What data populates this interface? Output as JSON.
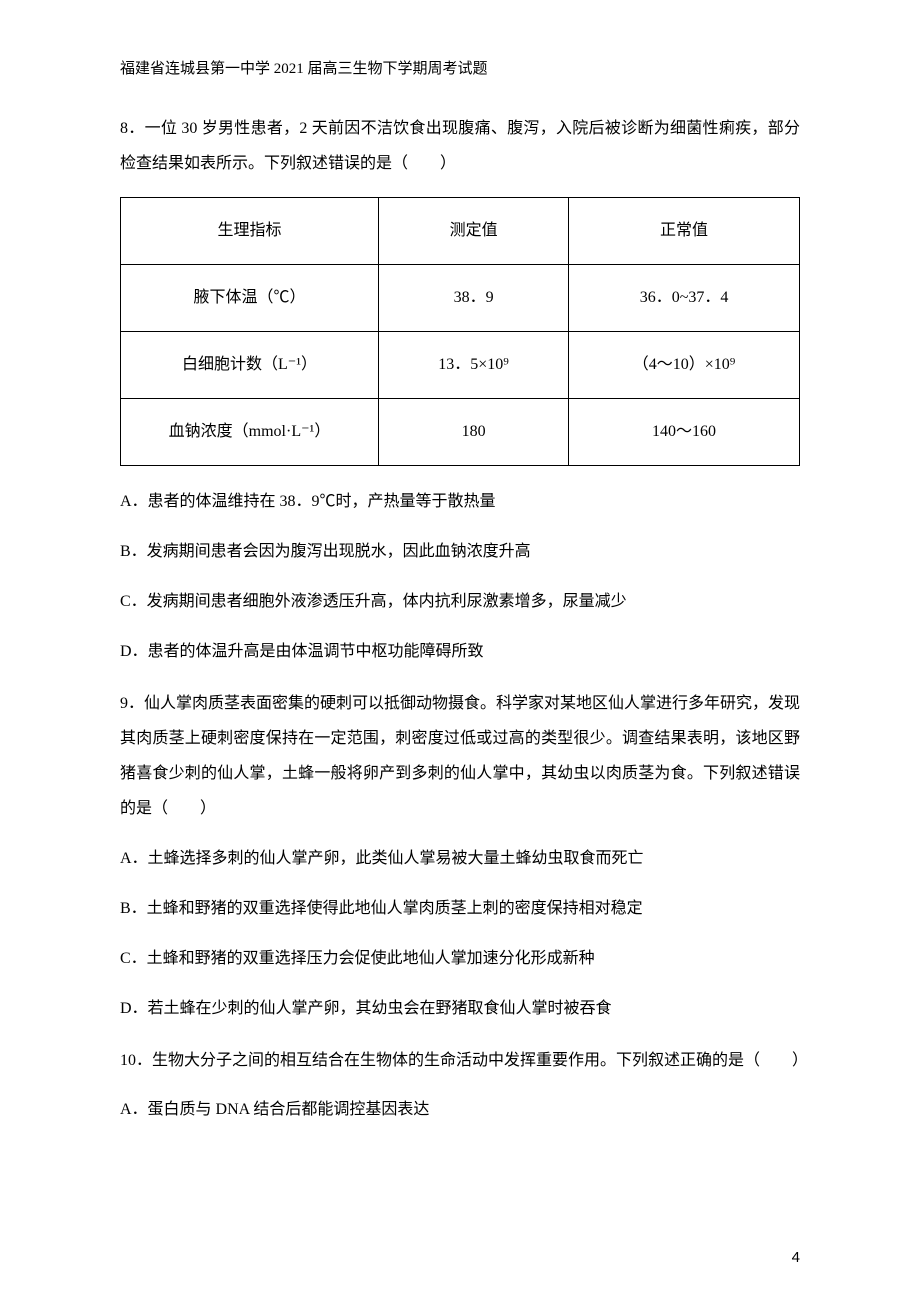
{
  "header": "福建省连城县第一中学 2021 届高三生物下学期周考试题",
  "q8": {
    "stem": "8．一位 30 岁男性患者，2 天前因不洁饮食出现腹痛、腹泻，入院后被诊断为细菌性痢疾，部分检查结果如表所示。下列叙述错误的是（　　）",
    "table": {
      "header": [
        "生理指标",
        "测定值",
        "正常值"
      ],
      "rows": [
        [
          "腋下体温（℃）",
          "38．9",
          "36．0~37．4"
        ],
        [
          "白细胞计数（L⁻¹）",
          "13．5×10⁹",
          "（4～10）×10⁹"
        ],
        [
          "血钠浓度（mmol·L⁻¹）",
          "180",
          "140～160"
        ]
      ]
    },
    "options": {
      "A": "A．患者的体温维持在 38．9℃时，产热量等于散热量",
      "B": "B．发病期间患者会因为腹泻出现脱水，因此血钠浓度升高",
      "C": "C．发病期间患者细胞外液渗透压升高，体内抗利尿激素增多，尿量减少",
      "D": "D．患者的体温升高是由体温调节中枢功能障碍所致"
    }
  },
  "q9": {
    "stem": "9．仙人掌肉质茎表面密集的硬刺可以抵御动物摄食。科学家对某地区仙人掌进行多年研究，发现其肉质茎上硬刺密度保持在一定范围，刺密度过低或过高的类型很少。调查结果表明，该地区野猪喜食少刺的仙人掌，土蜂一般将卵产到多刺的仙人掌中，其幼虫以肉质茎为食。下列叙述错误的是（　　）",
    "options": {
      "A": "A．土蜂选择多刺的仙人掌产卵，此类仙人掌易被大量土蜂幼虫取食而死亡",
      "B": "B．土蜂和野猪的双重选择使得此地仙人掌肉质茎上刺的密度保持相对稳定",
      "C": "C．土蜂和野猪的双重选择压力会促使此地仙人掌加速分化形成新种",
      "D": "D．若土蜂在少刺的仙人掌产卵，其幼虫会在野猪取食仙人掌时被吞食"
    }
  },
  "q10": {
    "stem": "10．生物大分子之间的相互结合在生物体的生命活动中发挥重要作用。下列叙述正确的是（　　）",
    "options": {
      "A": "A．蛋白质与 DNA 结合后都能调控基因表达"
    }
  },
  "pageNumber": "4"
}
